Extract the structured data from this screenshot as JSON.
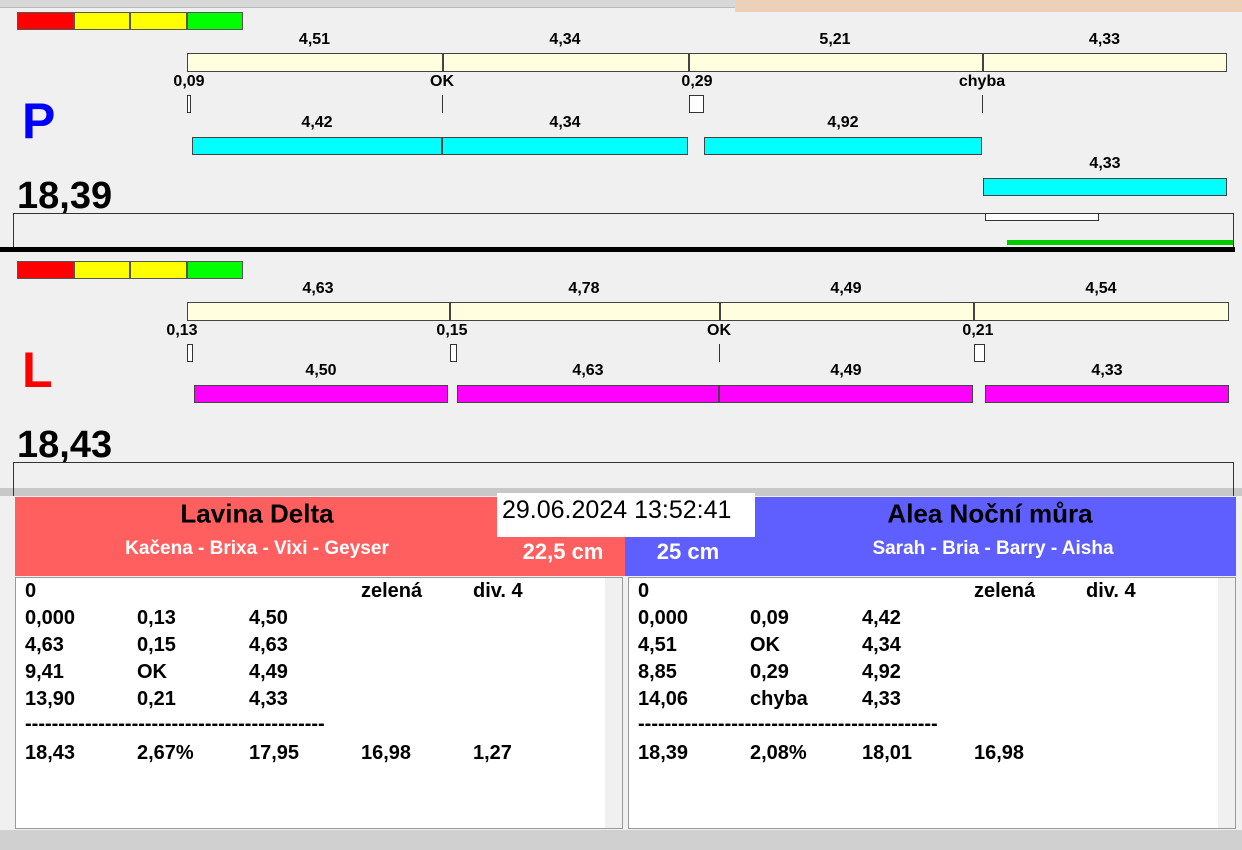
{
  "lanes": [
    {
      "letter": "P",
      "total": "18,39",
      "splits": [
        "4,51",
        "4,34",
        "5,21",
        "4,33"
      ],
      "reactions": [
        "0,09",
        "OK",
        "0,29",
        "chyba"
      ],
      "runs": [
        "4,42",
        "4,34",
        "4,92",
        "4,33"
      ]
    },
    {
      "letter": "L",
      "total": "18,43",
      "splits": [
        "4,63",
        "4,78",
        "4,49",
        "4,54"
      ],
      "reactions": [
        "0,13",
        "0,15",
        "OK",
        "0,21"
      ],
      "runs": [
        "4,50",
        "4,63",
        "4,49",
        "4,33"
      ]
    }
  ],
  "datetime": "29.06.2024 13:52:41",
  "teams": [
    {
      "name": "Lavina Delta",
      "members": "Kačena - Brixa - Vixi - Geyser",
      "height": "22,5 cm",
      "table": {
        "header": {
          "start": "0",
          "color": "zelená",
          "division": "div. 4"
        },
        "rows": [
          [
            "0,000",
            "0,13",
            "4,50"
          ],
          [
            "4,63",
            "0,15",
            "4,63"
          ],
          [
            "9,41",
            "OK",
            "4,49"
          ],
          [
            "13,90",
            "0,21",
            "4,33"
          ]
        ],
        "separator": "---------------------------------------------",
        "summary": [
          "18,43",
          "2,67%",
          "17,95",
          "16,98",
          "1,27"
        ]
      }
    },
    {
      "name": "Alea Noční můra",
      "members": "Sarah - Bria - Barry - Aisha",
      "height": "25 cm",
      "table": {
        "header": {
          "start": "0",
          "color": "zelená",
          "division": "div. 4"
        },
        "rows": [
          [
            "0,000",
            "0,09",
            "4,42"
          ],
          [
            "4,51",
            "OK",
            "4,34"
          ],
          [
            "8,85",
            "0,29",
            "4,92"
          ],
          [
            "14,06",
            "chyba",
            "4,33"
          ]
        ],
        "separator": "---------------------------------------------",
        "summary": [
          "18,39",
          "2,08%",
          "18,01",
          "16,98"
        ]
      }
    }
  ]
}
